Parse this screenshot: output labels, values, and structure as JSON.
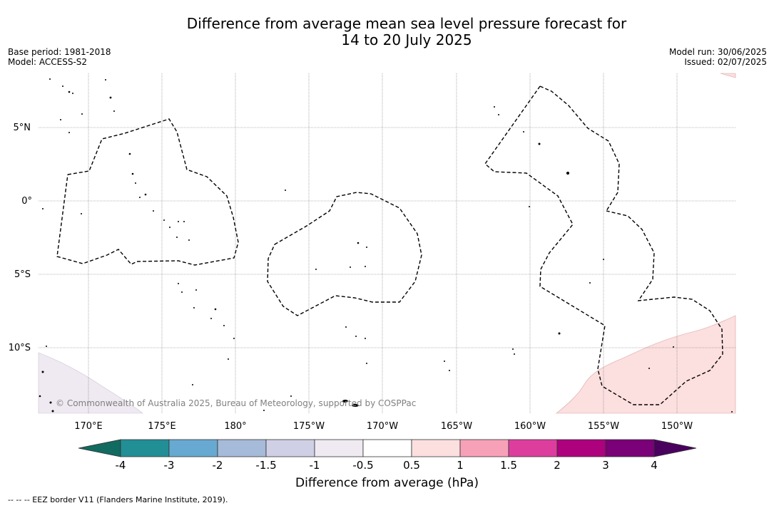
{
  "title": {
    "line1": "Difference from average mean sea level pressure forecast for",
    "line2": "14 to 20 July 2025"
  },
  "meta": {
    "base_period": "Base period: 1981-2018",
    "model": "Model: ACCESS-S2",
    "model_run": "Model run: 30/06/2025",
    "issued": "Issued: 02/07/2025"
  },
  "map": {
    "lat_labels": [
      "5°N",
      "0°",
      "5°S",
      "10°S"
    ],
    "lon_labels": [
      "170°E",
      "175°E",
      "180°",
      "175°W",
      "170°W",
      "165°W",
      "160°W",
      "155°W",
      "150°W"
    ],
    "copyright": "© Commonwealth of Australia 2025, Bureau of Meteorology, supported by COSPPac",
    "anomaly_fields": [
      {
        "region": "south-west corner",
        "range_hPa": "-1 to -0.5",
        "color": "#efe9f2"
      },
      {
        "region": "south-east corner",
        "range_hPa": "0.5 to 1",
        "color": "#fcdfdf"
      },
      {
        "region": "north-east corner",
        "range_hPa": "0.5 to 1",
        "color": "#fcdfdf"
      }
    ]
  },
  "colorbar": {
    "ticks": [
      "-4",
      "-3",
      "-2",
      "-1.5",
      "-1",
      "-0.5",
      "0.5",
      "1",
      "1.5",
      "2",
      "3",
      "4"
    ],
    "colors": [
      "#228f96",
      "#68a9d1",
      "#a6bad9",
      "#cfd0e5",
      "#efe9f2",
      "#ffffff",
      "#fcdfdf",
      "#f7a1b8",
      "#dd3e9e",
      "#ad017e",
      "#7a0177"
    ],
    "under_color": "#116b60",
    "over_color": "#4a005f",
    "label": "Difference from average (hPa)"
  },
  "footnote": "--  --  -- EEZ border V11 (Flanders Marine Institute, 2019)."
}
